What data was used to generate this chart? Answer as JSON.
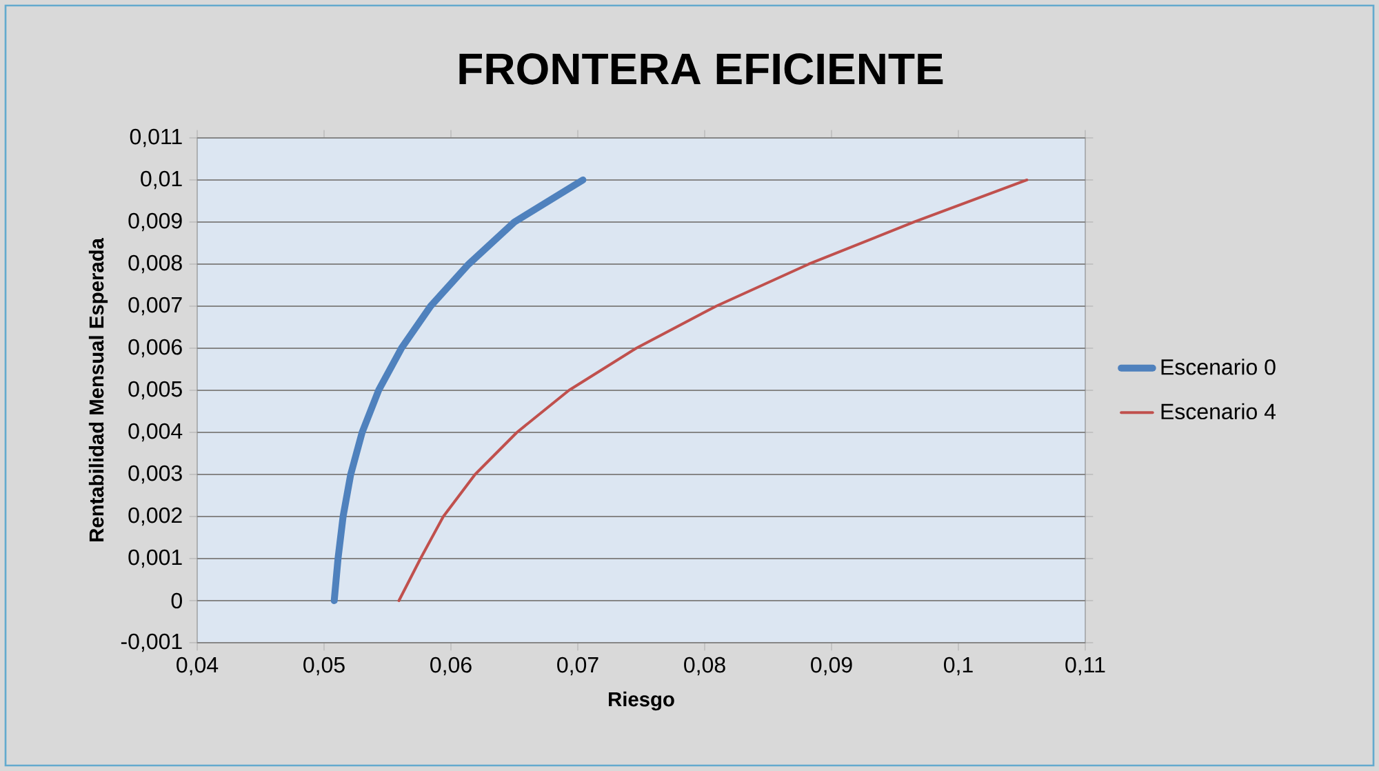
{
  "chart_data": {
    "type": "line",
    "title": "FRONTERA EFICIENTE",
    "xlabel": "Riesgo",
    "ylabel": "Rentabilidad Mensual Esperada",
    "xlim": [
      0.04,
      0.11
    ],
    "xticks": [
      {
        "value": 0.04,
        "label": "0,04"
      },
      {
        "value": 0.05,
        "label": "0,05"
      },
      {
        "value": 0.06,
        "label": "0,06"
      },
      {
        "value": 0.07,
        "label": "0,07"
      },
      {
        "value": 0.08,
        "label": "0,08"
      },
      {
        "value": 0.09,
        "label": "0,09"
      },
      {
        "value": 0.1,
        "label": "0,1"
      },
      {
        "value": 0.11,
        "label": "0,11"
      }
    ],
    "ylim": [
      -0.001,
      0.011
    ],
    "yticks": [
      {
        "value": -0.001,
        "label": "-0,001"
      },
      {
        "value": 0,
        "label": "0"
      },
      {
        "value": 0.001,
        "label": "0,001"
      },
      {
        "value": 0.002,
        "label": "0,002"
      },
      {
        "value": 0.003,
        "label": "0,003"
      },
      {
        "value": 0.004,
        "label": "0,004"
      },
      {
        "value": 0.005,
        "label": "0,005"
      },
      {
        "value": 0.006,
        "label": "0,006"
      },
      {
        "value": 0.007,
        "label": "0,007"
      },
      {
        "value": 0.008,
        "label": "0,008"
      },
      {
        "value": 0.009,
        "label": "0,009"
      },
      {
        "value": 0.01,
        "label": "0,01"
      },
      {
        "value": 0.011,
        "label": "0,011"
      }
    ],
    "grid": "y",
    "legend": "right",
    "marker": "none",
    "series": [
      {
        "name": "Escenario 0",
        "color": "#4f81bd",
        "x": [
          0.0508,
          0.0511,
          0.0515,
          0.0521,
          0.053,
          0.0543,
          0.0561,
          0.0584,
          0.0614,
          0.065,
          0.0704
        ],
        "values": [
          0,
          0.001,
          0.002,
          0.003,
          0.004,
          0.005,
          0.006,
          0.007,
          0.008,
          0.009,
          0.01
        ]
      },
      {
        "name": "Escenario 4",
        "color": "#c0504d",
        "x": [
          0.0559,
          0.0576,
          0.0594,
          0.0619,
          0.0652,
          0.0693,
          0.0746,
          0.0809,
          0.0882,
          0.0965,
          0.1054
        ],
        "values": [
          0,
          0.001,
          0.002,
          0.003,
          0.004,
          0.005,
          0.006,
          0.007,
          0.008,
          0.009,
          0.01
        ]
      }
    ]
  }
}
